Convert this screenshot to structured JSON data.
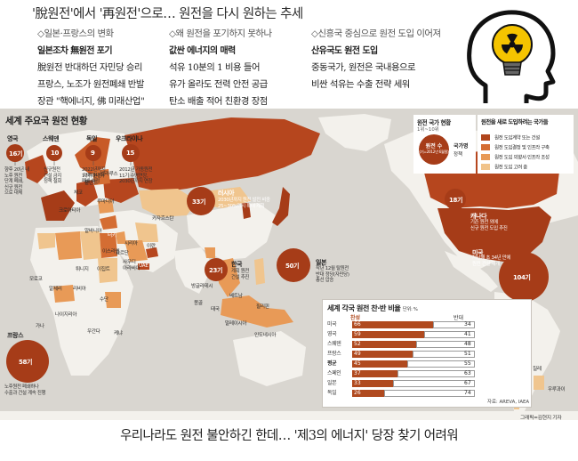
{
  "headline": "'脫원전'에서 '再원전'으로… 원전을 다시 원하는 추세",
  "columns": [
    {
      "heading": "◇일본·프랑스의 변화",
      "lead": "일본조차 無원전 포기",
      "lines": [
        "脫원전 반대하던 자민당 승리",
        "프랑스, 노조가 원전폐쇄 반발",
        "장관 \"핵에너지, 佛 미래산업\""
      ]
    },
    {
      "heading": "◇왜 원전을 포기하지 못하나",
      "lead": "값싼 에너지의 매력",
      "lines": [
        "석유 10분의 1 비용 들어",
        "유가 올라도 전력 안전 공급",
        "탄소 배출 적어 친환경 장점"
      ]
    },
    {
      "heading": "◇신흥국 중심으로 원전 도입 이어져",
      "lead": "산유국도 원전 도입",
      "lines": [
        "중동국가, 원전은 국내용으로",
        "비싼 석유는 수출 전략 세워"
      ]
    }
  ],
  "map": {
    "title": "세계 주요국 원전 현황",
    "legend_count": {
      "title": "원전 국가 현황",
      "subtitle": "1위~10위",
      "bubble_label": "원전 수",
      "bubble_note": "(기=2012년 6월말)",
      "policy_label": "국가명",
      "policy_note": "정책"
    },
    "legend_new": {
      "title": "원전을 새로 도입하려는 국가들",
      "items": [
        {
          "color": "#b0451c",
          "label": "원전 도입계약 또는 건설"
        },
        {
          "color": "#d46d33",
          "label": "원전 도입결정 및 인프라 구축"
        },
        {
          "color": "#e89a57",
          "label": "원전 도입 의향서·인프라 조성"
        },
        {
          "color": "#f1c38a",
          "label": "원전 도입 고려 중"
        }
      ]
    },
    "bubbles": [
      {
        "name": "영국",
        "count": "16기"
      },
      {
        "name": "스웨덴",
        "count": "10"
      },
      {
        "name": "독일",
        "count": "9"
      },
      {
        "name": "우크라이나",
        "count": "15"
      },
      {
        "name": "러시아",
        "count": "33기"
      },
      {
        "name": "한국",
        "count": "23기"
      },
      {
        "name": "일본",
        "count": "50기"
      },
      {
        "name": "캐나다",
        "count": "18기"
      },
      {
        "name": "미국",
        "count": "104기"
      },
      {
        "name": "프랑스",
        "count": "58기"
      }
    ],
    "notes": {
      "uk": [
        "향후 20년 내",
        "노후 원전",
        "단계 폐쇄,",
        "신규 원전",
        "으로 대체"
      ],
      "sweden": [
        "신규원전",
        "건설 금지",
        "정책 철회"
      ],
      "germany": [
        "2022년까지",
        "17기 원전",
        "폐쇄 예정"
      ],
      "ukraine": [
        "2012년 가동원전",
        "11기 수명연장,",
        "2030년까지 연장"
      ],
      "russia": [
        "2030년까지 원전 발전 비중",
        "25~30%까지 확대 계획"
      ],
      "korea": [
        "계획 원전",
        "건설 추진"
      ],
      "japan": [
        "작년 12월 탈원전",
        "반대 정당(자민당)",
        "총선 압승"
      ],
      "canada": [
        "기존 원전 외에",
        "신규 원전 도입 추진"
      ],
      "usa": [
        "지난해 초 34년 만에",
        "원전 건설 재개"
      ],
      "france": [
        "노후원전 폐쇄하나",
        "수출과 건설 계속 진행"
      ]
    },
    "places": [
      "벨라루스",
      "폴란드",
      "리투아니아",
      "체코",
      "크로아티아",
      "루마니아",
      "카자흐스탄",
      "터키",
      "알바니아",
      "이스라엘",
      "시리아",
      "요르단",
      "이란",
      "UAE",
      "사우디",
      "아라비아",
      "이집트",
      "모로코",
      "알제리",
      "튀니지",
      "리비아",
      "나이지리아",
      "가나",
      "수단",
      "케냐",
      "우간다",
      "몽골",
      "베트남",
      "필리핀",
      "방글라데시",
      "태국",
      "말레이시아",
      "인도네시아",
      "칠레",
      "우루과이"
    ],
    "poll": {
      "title": "세계 각국 원전 찬·반 비율",
      "unit": "단위: %",
      "yes_label": "찬성",
      "no_label": "반대",
      "rows": [
        {
          "country": "미국",
          "yes": 66,
          "no": 34
        },
        {
          "country": "영국",
          "yes": 59,
          "no": 41
        },
        {
          "country": "스웨덴",
          "yes": 52,
          "no": 48
        },
        {
          "country": "프랑스",
          "yes": 49,
          "no": 51
        },
        {
          "country": "평균",
          "yes": 45,
          "no": 55
        },
        {
          "country": "스페인",
          "yes": 37,
          "no": 63
        },
        {
          "country": "일본",
          "yes": 33,
          "no": 67
        },
        {
          "country": "독일",
          "yes": 26,
          "no": 74
        }
      ],
      "source": "자료: AREVA, IAEA"
    }
  },
  "credit": "그래픽=김현지 기자",
  "bottom_line": "우리나라도 원전 불안하긴 한데…  '제3의 에너지' 당장 찾기 어려워",
  "colors": {
    "dark": "#9e3a17",
    "mid": "#c85a27",
    "light": "#e59a5a",
    "pale": "#f0c58e",
    "land": "#f3f1ec",
    "sea": "#d9d6d0"
  }
}
